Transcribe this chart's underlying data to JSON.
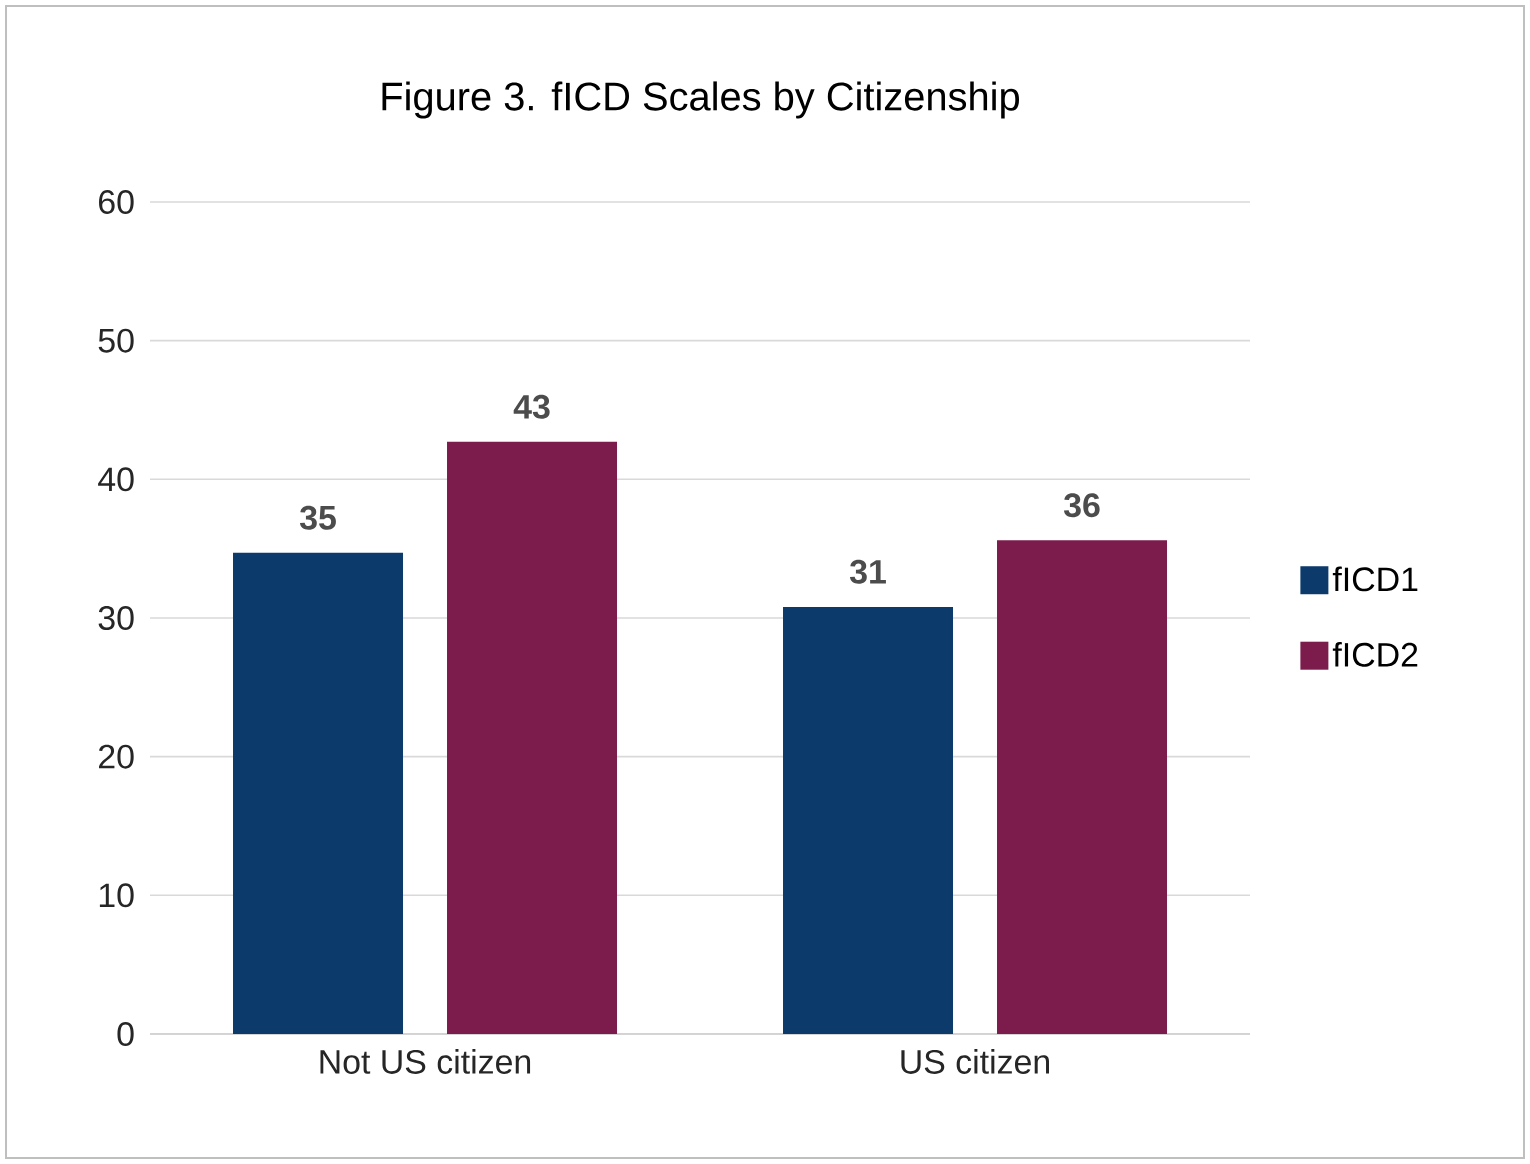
{
  "chart_data": {
    "type": "bar",
    "title": "Figure 3. fICD Scales by Citizenship",
    "categories": [
      "Not US citizen",
      "US citizen"
    ],
    "series": [
      {
        "name": "fICD1",
        "color": "#0b3a6b",
        "values": [
          34.7,
          30.8
        ],
        "value_labels": [
          "35",
          "31"
        ]
      },
      {
        "name": "fICD2",
        "color": "#7b1c4c",
        "values": [
          42.7,
          35.6
        ],
        "value_labels": [
          "43",
          "36"
        ]
      }
    ],
    "ylim": [
      0,
      60
    ],
    "yticks": [
      0,
      10,
      20,
      30,
      40,
      50,
      60
    ],
    "grid": "y",
    "legend": "right"
  }
}
